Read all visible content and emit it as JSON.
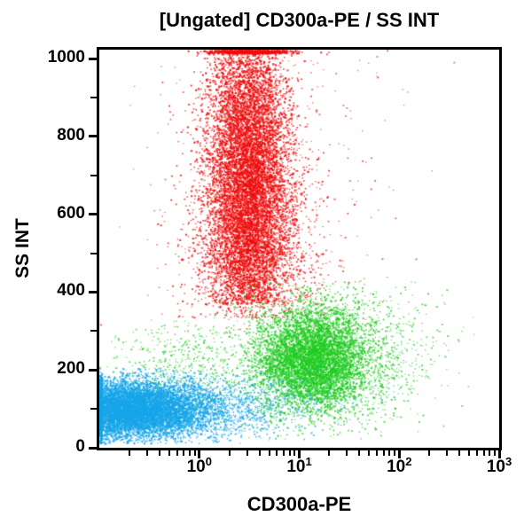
{
  "title": "[Ungated] CD300a-PE / SS INT",
  "x_axis": {
    "label": "CD300a-PE",
    "scale": "log",
    "ticks": [
      {
        "base": "10",
        "exp": "0"
      },
      {
        "base": "10",
        "exp": "1"
      },
      {
        "base": "10",
        "exp": "2"
      },
      {
        "base": "10",
        "exp": "3"
      }
    ]
  },
  "y_axis": {
    "label": "SS INT",
    "ticks": [
      "0",
      "200",
      "400",
      "600",
      "800",
      "1000"
    ]
  },
  "colors": {
    "red_population": "#ee0e0e",
    "green_population": "#20cc20",
    "blue_population": "#17a5e9",
    "axis": "#000000",
    "background": "#ffffff"
  },
  "chart_data": {
    "type": "scatter",
    "title": "[Ungated] CD300a-PE / SS INT",
    "xlabel": "CD300a-PE",
    "ylabel": "SS INT",
    "xscale": "log",
    "xlim": [
      0.1,
      1000
    ],
    "x_log_range": [
      -1,
      3
    ],
    "ylim": [
      0,
      1023
    ],
    "y_major_ticks": [
      0,
      200,
      400,
      600,
      800,
      1000
    ],
    "y_minor_ticks": [
      100,
      300,
      500,
      700,
      900
    ],
    "x_major_tick_exponents": [
      0,
      1,
      2,
      3
    ],
    "grid": false,
    "legend": "none",
    "populations": [
      {
        "name": "red-high-ss-core",
        "color": "#ee0e0e",
        "dot": 1.6,
        "alpha": 0.9,
        "n": 9000,
        "x": {
          "dist": "normal",
          "mean": 0.48,
          "sd": 0.2
        },
        "y": {
          "dist": "normal",
          "mean": 700,
          "sd": 220,
          "min": 370,
          "max": 1023,
          "pile_hi": true
        }
      },
      {
        "name": "red-high-ss-fringe",
        "color": "#ee0e0e",
        "dot": 1.4,
        "alpha": 0.85,
        "n": 2600,
        "x": {
          "dist": "normal",
          "mean": 0.52,
          "sd": 0.32
        },
        "y": {
          "dist": "normal",
          "mean": 540,
          "sd": 170,
          "min": 335,
          "max": 1023,
          "pile_hi": true
        }
      },
      {
        "name": "red-sparse-scatter",
        "color": "#ee0e0e",
        "dot": 1.2,
        "alpha": 0.8,
        "n": 380,
        "x": {
          "dist": "normal",
          "mean": 0.7,
          "sd": 0.6
        },
        "y": {
          "dist": "uniform",
          "min": 270,
          "max": 1023
        }
      },
      {
        "name": "green-mid-ss-core",
        "color": "#20cc20",
        "dot": 1.6,
        "alpha": 0.9,
        "n": 4600,
        "x": {
          "dist": "normal",
          "mean": 1.12,
          "sd": 0.28
        },
        "y": {
          "dist": "normal",
          "mean": 230,
          "sd": 65,
          "min": 40,
          "max": 420
        }
      },
      {
        "name": "green-mid-ss-spread",
        "color": "#20cc20",
        "dot": 1.3,
        "alpha": 0.8,
        "n": 2000,
        "x": {
          "dist": "normal",
          "mean": 1.3,
          "sd": 0.5
        },
        "y": {
          "dist": "normal",
          "mean": 240,
          "sd": 90,
          "min": 30,
          "max": 430
        }
      },
      {
        "name": "green-left-tail",
        "color": "#20cc20",
        "dot": 1.3,
        "alpha": 0.8,
        "n": 500,
        "x": {
          "dist": "normal",
          "mean": -0.15,
          "sd": 0.4
        },
        "y": {
          "dist": "normal",
          "mean": 210,
          "sd": 55,
          "min": 40,
          "max": 330
        }
      },
      {
        "name": "blue-low-ss-core",
        "color": "#17a5e9",
        "dot": 1.6,
        "alpha": 0.9,
        "n": 8000,
        "x": {
          "dist": "normal",
          "mean": -0.68,
          "sd": 0.38,
          "pile_lo": true
        },
        "y": {
          "dist": "normal",
          "mean": 100,
          "sd": 36,
          "min": 12,
          "max": 205
        }
      },
      {
        "name": "blue-right-tail",
        "color": "#17a5e9",
        "dot": 1.3,
        "alpha": 0.8,
        "n": 1600,
        "x": {
          "dist": "normal",
          "mean": 0.15,
          "sd": 0.55
        },
        "y": {
          "dist": "normal",
          "mean": 108,
          "sd": 42,
          "min": 12,
          "max": 215
        }
      }
    ]
  }
}
